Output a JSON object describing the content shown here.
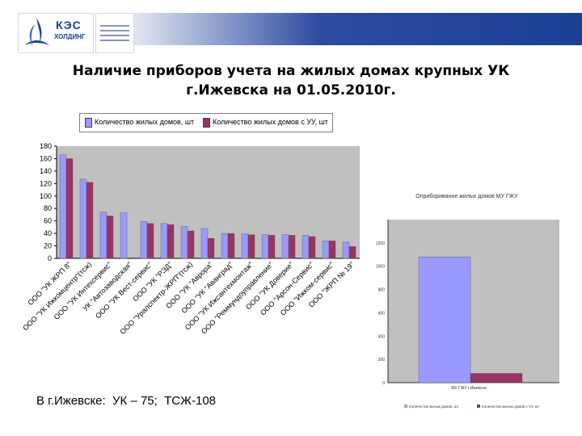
{
  "header": {
    "logo_text": "КЭС",
    "logo_subtext": "ХОЛДИНГ"
  },
  "title_line1": "Наличие приборов учета на жилых домах крупных УК",
  "title_line2": "г.Ижевска на 01.05.2010г.",
  "bottom_text": "В г.Ижевске:  УК – 75;  ТСЖ-108",
  "colors": {
    "series1": "#9999ff",
    "series2": "#993366",
    "plot_bg": "#c0c0c0",
    "header_bar": "#1c3f94"
  },
  "chart_data": [
    {
      "type": "bar",
      "legend_position": "top",
      "grid": false,
      "ylim": [
        0,
        180
      ],
      "yticks": [
        "0",
        "20",
        "40",
        "60",
        "80",
        "100",
        "120",
        "140",
        "160",
        "180"
      ],
      "categories": [
        "ООО \"УК ЖРП 8\"",
        "ООО \"УК Ижкомцентр\"(тсж)",
        "ООО \"УК Интехсервис\"",
        "УК \"Автозаводская\"",
        "ООО \"УК Вест-сервис\"",
        "ООО \"УК \"РЭД\"",
        "ООО \"Уралспектр-ЖРП\"(тсж)",
        "ООО \"УК \"Аврора\"",
        "ООО \"УК \"Аванград\"",
        "ООО \"УК Ижсантехмонтаж\"",
        "ООО \"Реммундоуправление\"",
        "ООО \"УК Доверие\"",
        "ООО \"Арсон-Сервис\"",
        "ООО \"Ижком-сервис\"",
        "ООО \"ЖРП № 19\""
      ],
      "series": [
        {
          "name": "Количество жилых домов, шт",
          "values": [
            166,
            127,
            74,
            73,
            59,
            56,
            51,
            48,
            40,
            39,
            38,
            38,
            37,
            28,
            26
          ]
        },
        {
          "name": "Количество жилых домов с УУ, шт",
          "values": [
            160,
            122,
            68,
            0,
            56,
            54,
            44,
            32,
            40,
            38,
            37,
            37,
            35,
            28,
            19
          ]
        }
      ]
    },
    {
      "type": "bar",
      "title": "Оприборивание жилых домов МУ ГЖУ",
      "ylim": [
        0,
        1400
      ],
      "yticks": [
        "0",
        "200",
        "400",
        "600",
        "800",
        "1000",
        "1200"
      ],
      "categories": [
        "МУ ГЖУ г.Ижевска"
      ],
      "series": [
        {
          "name": "Количество жилых домов, шт",
          "values": [
            1080
          ]
        },
        {
          "name": "Количество жилых домов с УУ, шт",
          "values": [
            80
          ]
        }
      ]
    }
  ]
}
